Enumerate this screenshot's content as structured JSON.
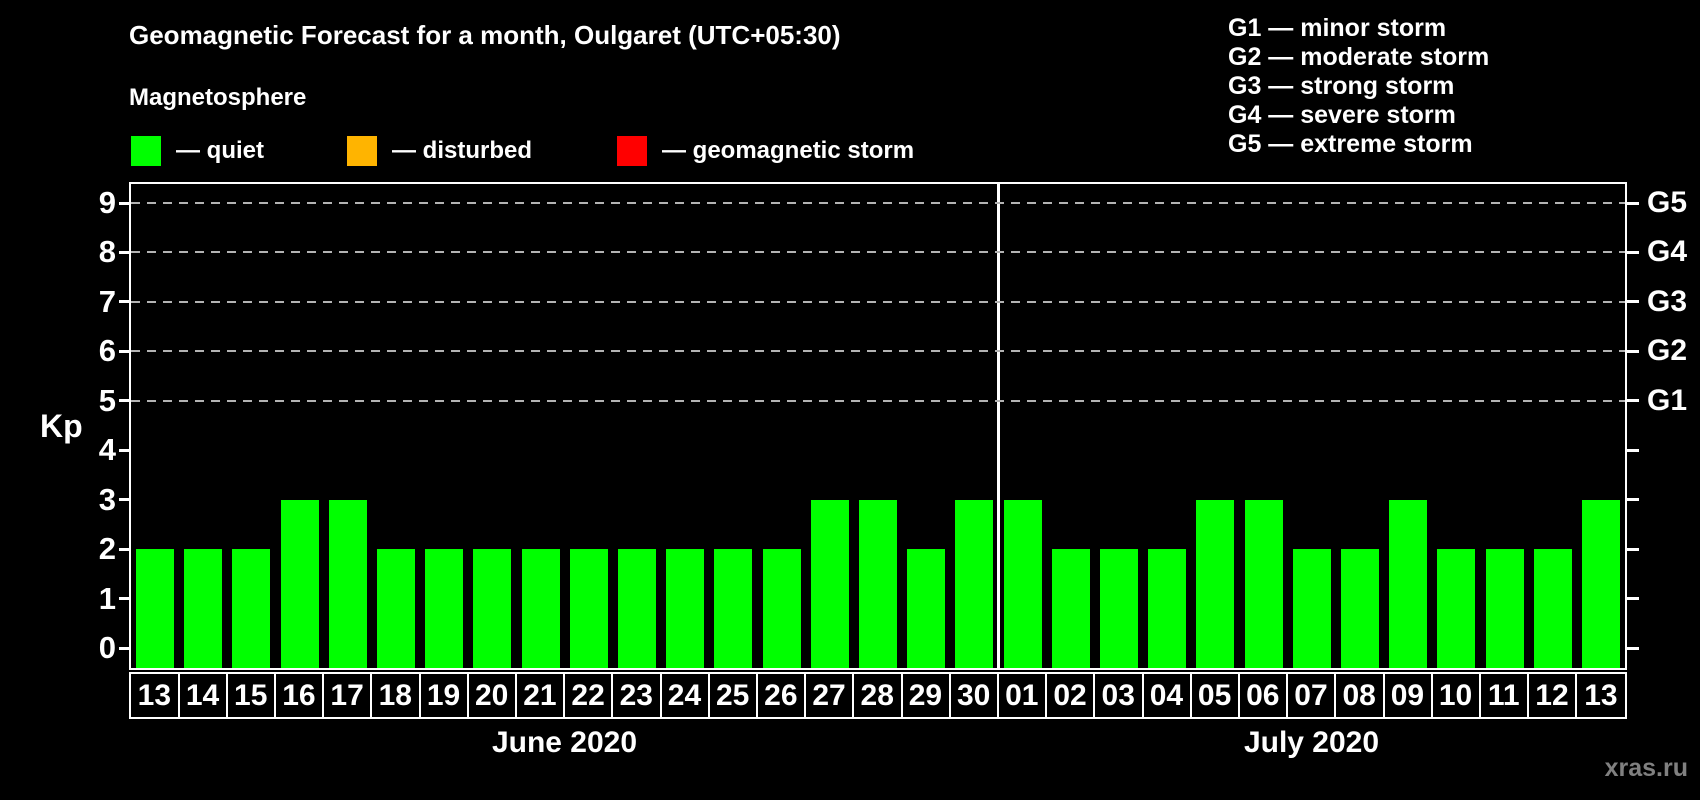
{
  "page": {
    "title": "Geomagnetic Forecast for a month, Oulgaret (UTC+05:30)",
    "subtitle": "Magnetosphere",
    "watermark": "xras.ru"
  },
  "colors": {
    "background": "#000000",
    "quiet": "#00ff00",
    "disturbed": "#ffb400",
    "storm": "#ff0000",
    "axis": "#ffffff",
    "grid": "#b3b3b3",
    "watermark": "#808080"
  },
  "legend": {
    "items": [
      {
        "key": "quiet",
        "label": "— quiet"
      },
      {
        "key": "disturbed",
        "label": "— disturbed"
      },
      {
        "key": "storm",
        "label": "— geomagnetic storm"
      }
    ]
  },
  "g_scale_legend": [
    "G1 — minor storm",
    "G2 — moderate storm",
    "G3 — strong storm",
    "G4 — severe storm",
    "G5 — extreme storm"
  ],
  "chart_data": {
    "type": "bar",
    "title": "Geomagnetic Forecast for a month, Oulgaret (UTC+05:30)",
    "ylabel": "Kp",
    "ylim": [
      0,
      9
    ],
    "yticks": [
      0,
      1,
      2,
      3,
      4,
      5,
      6,
      7,
      8,
      9
    ],
    "grid": "dashed horizontal lines at Kp 5-9 only",
    "gridlines_at": [
      5,
      6,
      7,
      8,
      9
    ],
    "right_axis": [
      {
        "value": 5,
        "label": "G1"
      },
      {
        "value": 6,
        "label": "G2"
      },
      {
        "value": 7,
        "label": "G3"
      },
      {
        "value": 8,
        "label": "G4"
      },
      {
        "value": 9,
        "label": "G5"
      }
    ],
    "legend_position": "top-left and top-right",
    "bar_condition_all": "quiet",
    "months": [
      {
        "label": "June 2020",
        "days": [
          "13",
          "14",
          "15",
          "16",
          "17",
          "18",
          "19",
          "20",
          "21",
          "22",
          "23",
          "24",
          "25",
          "26",
          "27",
          "28",
          "29",
          "30"
        ],
        "kp": [
          2,
          2,
          2,
          3,
          3,
          2,
          2,
          2,
          2,
          2,
          2,
          2,
          2,
          2,
          3,
          3,
          2,
          3
        ]
      },
      {
        "label": "July 2020",
        "days": [
          "01",
          "02",
          "03",
          "04",
          "05",
          "06",
          "07",
          "08",
          "09",
          "10",
          "11",
          "12",
          "13"
        ],
        "kp": [
          3,
          2,
          2,
          2,
          3,
          3,
          2,
          2,
          3,
          2,
          2,
          2,
          3
        ]
      }
    ]
  }
}
